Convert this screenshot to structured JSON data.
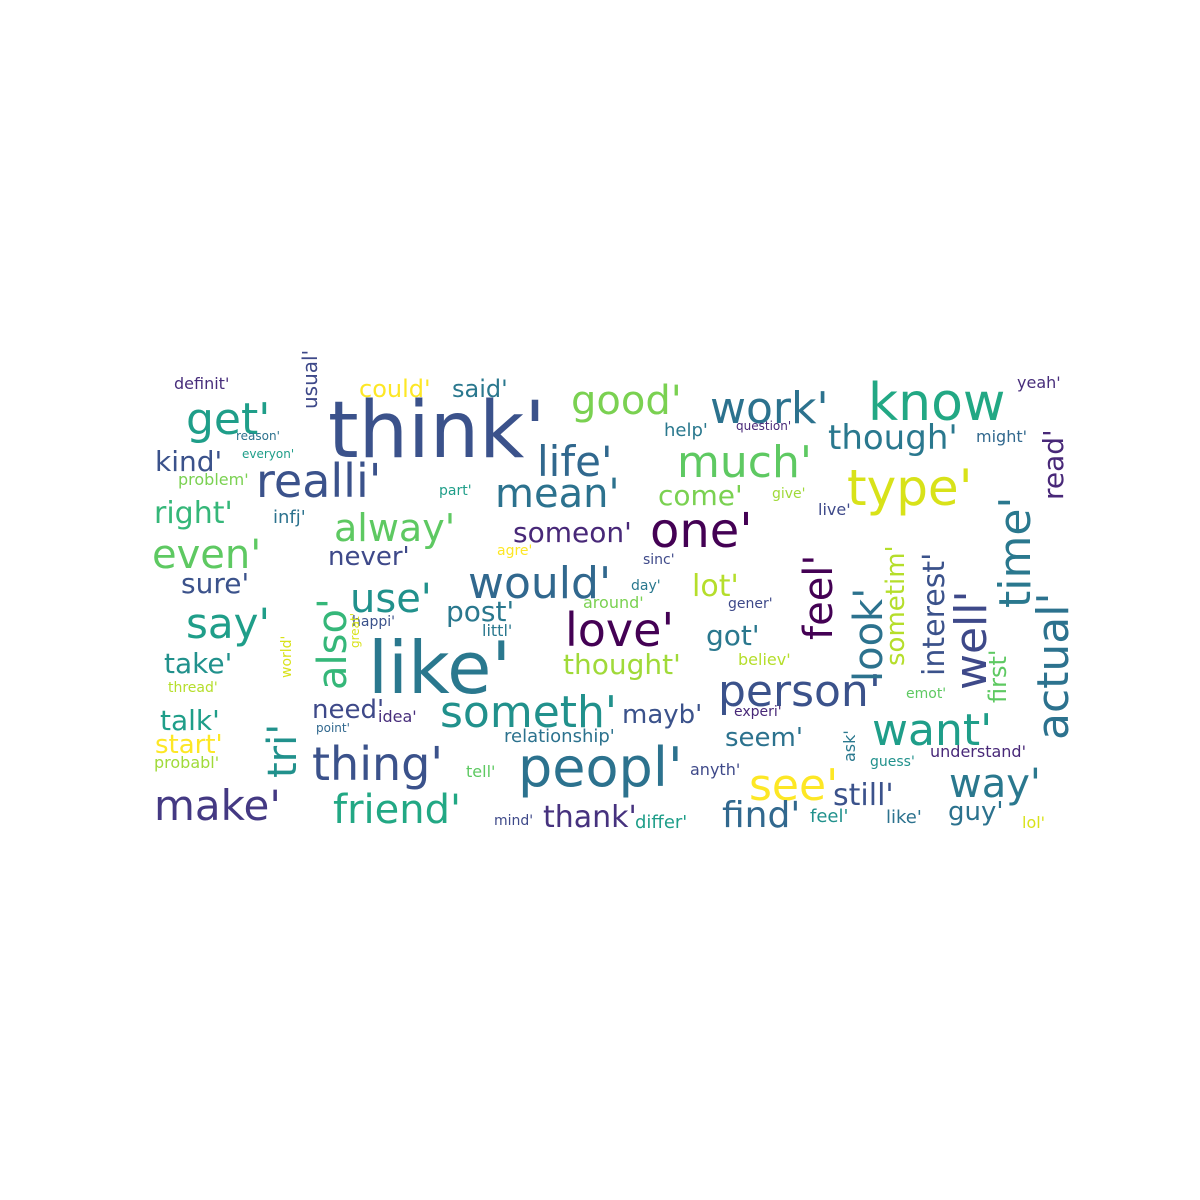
{
  "words": [
    {
      "text": "think'",
      "color": "#3b528b"
    },
    {
      "text": "like'",
      "color": "#2a788e"
    },
    {
      "text": "peopl'",
      "color": "#2c728e"
    },
    {
      "text": "one'",
      "color": "#440154"
    },
    {
      "text": "know",
      "color": "#22a884"
    },
    {
      "text": "realli'",
      "color": "#3b528b"
    },
    {
      "text": "type'",
      "color": "#d8e219"
    },
    {
      "text": "love'",
      "color": "#440154"
    },
    {
      "text": "person'",
      "color": "#3b528b"
    },
    {
      "text": "thing'",
      "color": "#3b528b"
    },
    {
      "text": "someth'",
      "color": "#21918c"
    },
    {
      "text": "would'",
      "color": "#31688e"
    },
    {
      "text": "make'",
      "color": "#443983"
    },
    {
      "text": "want'",
      "color": "#1f9e89"
    },
    {
      "text": "much'",
      "color": "#5ec962"
    },
    {
      "text": "work'",
      "color": "#2c728e"
    },
    {
      "text": "life'",
      "color": "#31688e"
    },
    {
      "text": "mean'",
      "color": "#2c728e"
    },
    {
      "text": "good'",
      "color": "#7ad151"
    },
    {
      "text": "get'",
      "color": "#1f9e89"
    },
    {
      "text": "alway'",
      "color": "#5ec962"
    },
    {
      "text": "even'",
      "color": "#5ec962"
    },
    {
      "text": "use'",
      "color": "#21918c"
    },
    {
      "text": "say'",
      "color": "#1f9e89"
    },
    {
      "text": "friend'",
      "color": "#22a884"
    },
    {
      "text": "see'",
      "color": "#fde725"
    },
    {
      "text": "way'",
      "color": "#2a788e"
    },
    {
      "text": "find'",
      "color": "#31688e"
    },
    {
      "text": "though'",
      "color": "#2a788e"
    },
    {
      "text": "feel'",
      "color": "#440154"
    },
    {
      "text": "look'",
      "color": "#2c728e"
    },
    {
      "text": "well'",
      "color": "#3e4989"
    },
    {
      "text": "time'",
      "color": "#2a788e"
    },
    {
      "text": "actual'",
      "color": "#2c728e"
    },
    {
      "text": "also'",
      "color": "#35b779"
    },
    {
      "text": "tri'",
      "color": "#21918c"
    },
    {
      "text": "read'",
      "color": "#482878"
    },
    {
      "text": "interest'",
      "color": "#3b528b"
    },
    {
      "text": "sometim'",
      "color": "#b5de2b"
    },
    {
      "text": "first'",
      "color": "#5ec962"
    },
    {
      "text": "come'",
      "color": "#7ad151"
    },
    {
      "text": "someon'",
      "color": "#482878"
    },
    {
      "text": "never'",
      "color": "#3e4989"
    },
    {
      "text": "post'",
      "color": "#2a788e"
    },
    {
      "text": "lot'",
      "color": "#b5de2b"
    },
    {
      "text": "got'",
      "color": "#2a788e"
    },
    {
      "text": "thought'",
      "color": "#a0da39"
    },
    {
      "text": "mayb'",
      "color": "#3b528b"
    },
    {
      "text": "seem'",
      "color": "#2c728e"
    },
    {
      "text": "still'",
      "color": "#3b528b"
    },
    {
      "text": "guy'",
      "color": "#2c728e"
    },
    {
      "text": "thank'",
      "color": "#46327e"
    },
    {
      "text": "kind'",
      "color": "#3b528b"
    },
    {
      "text": "right'",
      "color": "#35b779"
    },
    {
      "text": "sure'",
      "color": "#3b528b"
    },
    {
      "text": "take'",
      "color": "#21918c"
    },
    {
      "text": "talk'",
      "color": "#1f9e89"
    },
    {
      "text": "start'",
      "color": "#fde725"
    },
    {
      "text": "need'",
      "color": "#3e4989"
    },
    {
      "text": "could'",
      "color": "#fde725"
    },
    {
      "text": "said'",
      "color": "#2a788e"
    },
    {
      "text": "definit'",
      "color": "#472d7b"
    },
    {
      "text": "yeah'",
      "color": "#472d7b"
    },
    {
      "text": "might'",
      "color": "#31688e"
    },
    {
      "text": "help'",
      "color": "#2a788e"
    },
    {
      "text": "question'",
      "color": "#482878"
    },
    {
      "text": "reason'",
      "color": "#2c728e"
    },
    {
      "text": "everyon'",
      "color": "#1f9e89"
    },
    {
      "text": "usual'",
      "color": "#3e4989"
    },
    {
      "text": "problem'",
      "color": "#7ad151"
    },
    {
      "text": "part'",
      "color": "#1f9e89"
    },
    {
      "text": "give'",
      "color": "#a0da39"
    },
    {
      "text": "live'",
      "color": "#3e4989"
    },
    {
      "text": "infj'",
      "color": "#2c728e"
    },
    {
      "text": "agre'",
      "color": "#fde725"
    },
    {
      "text": "sinc'",
      "color": "#3e4989"
    },
    {
      "text": "day'",
      "color": "#2a788e"
    },
    {
      "text": "around'",
      "color": "#7ad151"
    },
    {
      "text": "gener'",
      "color": "#3e4989"
    },
    {
      "text": "happi'",
      "color": "#3b528b"
    },
    {
      "text": "littl'",
      "color": "#2a788e"
    },
    {
      "text": "world'",
      "color": "#d8e219"
    },
    {
      "text": "great'",
      "color": "#d8e219"
    },
    {
      "text": "thread'",
      "color": "#b5de2b"
    },
    {
      "text": "believ'",
      "color": "#b5de2b"
    },
    {
      "text": "emot'",
      "color": "#5ec962"
    },
    {
      "text": "idea'",
      "color": "#472d7b"
    },
    {
      "text": "point'",
      "color": "#31688e"
    },
    {
      "text": "experi'",
      "color": "#482878"
    },
    {
      "text": "relationship'",
      "color": "#2c728e"
    },
    {
      "text": "ask'",
      "color": "#2a788e"
    },
    {
      "text": "understand'",
      "color": "#482878"
    },
    {
      "text": "guess'",
      "color": "#21918c"
    },
    {
      "text": "probabl'",
      "color": "#a0da39"
    },
    {
      "text": "tell'",
      "color": "#5ec962"
    },
    {
      "text": "anyth'",
      "color": "#3e4989"
    },
    {
      "text": "mind'",
      "color": "#3e4989"
    },
    {
      "text": "differ'",
      "color": "#1f9e89"
    },
    {
      "text": "feel'",
      "color": "#21918c"
    },
    {
      "text": "like'",
      "color": "#2c728e"
    },
    {
      "text": "lol'",
      "color": "#d8e219"
    }
  ]
}
